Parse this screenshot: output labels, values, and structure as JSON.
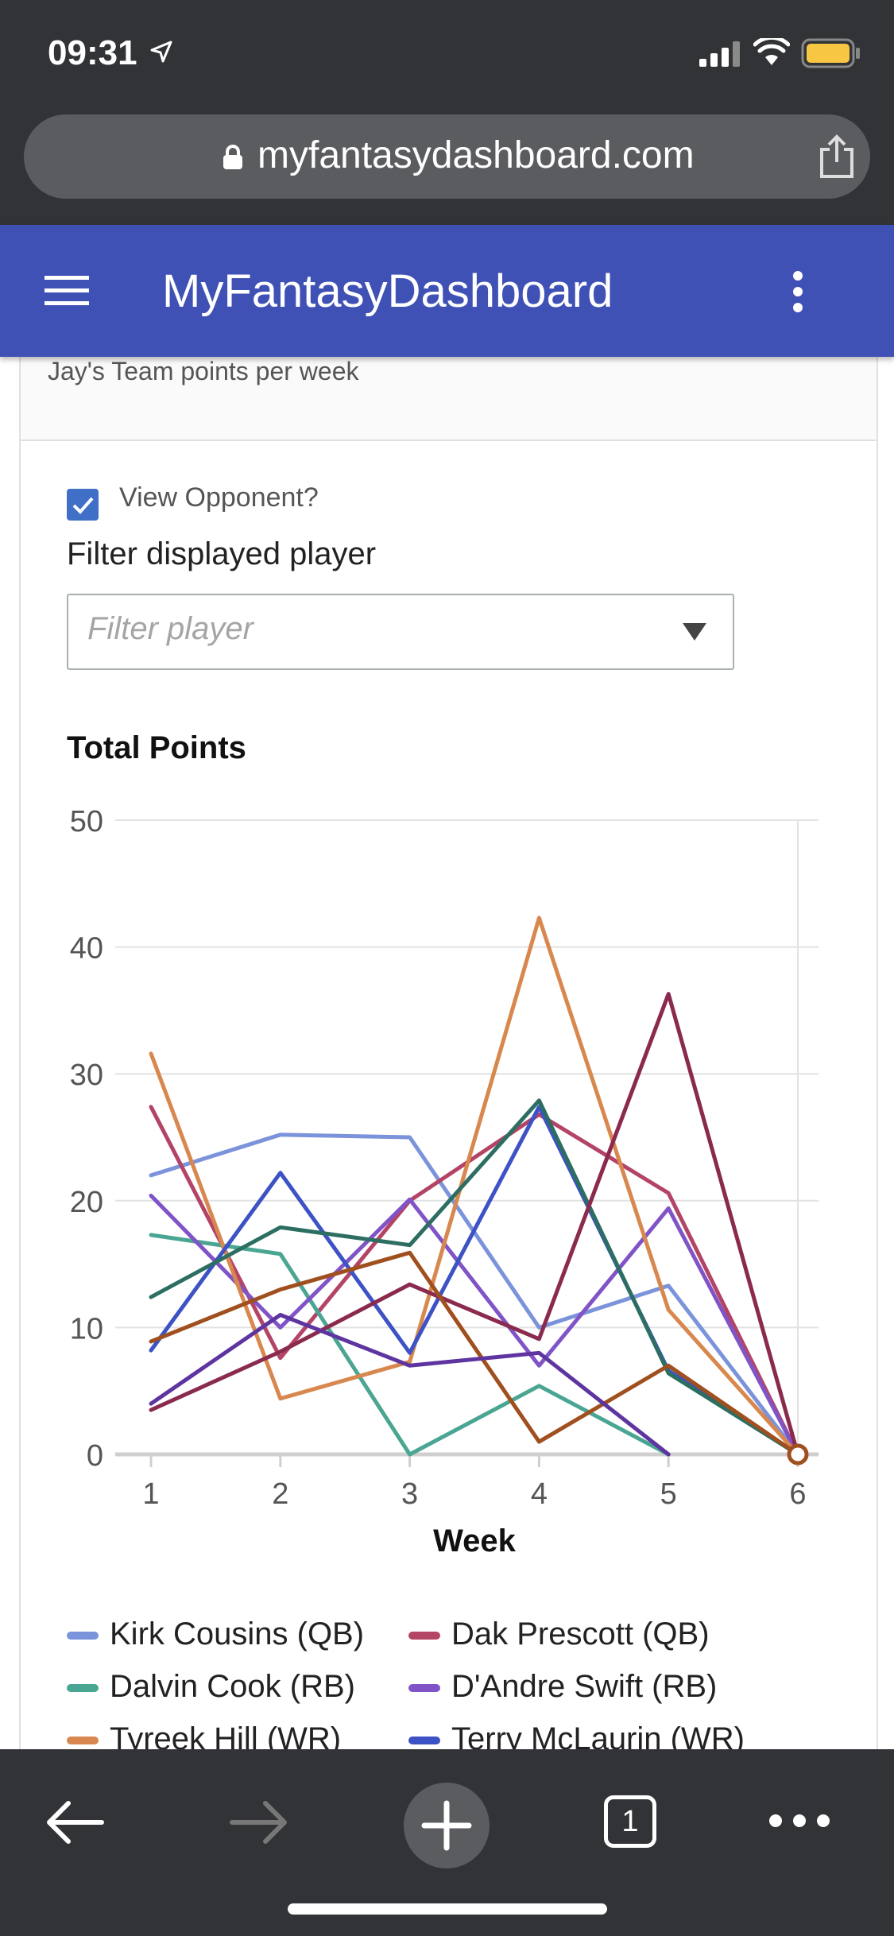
{
  "status": {
    "time": "09:31"
  },
  "browser": {
    "url": "myfantasydashboard.com",
    "tab_count": "1"
  },
  "appbar": {
    "title": "MyFantasyDashboard"
  },
  "card": {
    "subtitle": "Jay's Team points per week",
    "view_opponent_label": "View Opponent?",
    "view_opponent_checked": true,
    "filter_label": "Filter displayed player",
    "filter_placeholder": "Filter player"
  },
  "colors": {
    "appbar": "#3f51b5",
    "chrome": "#323336"
  },
  "chart_data": {
    "type": "line",
    "title": "Total Points",
    "xlabel": "Week",
    "ylabel": "",
    "x": [
      1,
      2,
      3,
      4,
      5,
      6
    ],
    "xlim": [
      1,
      6
    ],
    "ylim": [
      0,
      50
    ],
    "yticks": [
      0,
      10,
      20,
      30,
      40,
      50
    ],
    "grid": true,
    "legend_position": "bottom",
    "series": [
      {
        "name": "Kirk Cousins (QB)",
        "color": "#7b93db",
        "values": [
          22,
          25.2,
          25,
          10,
          13.3,
          0
        ],
        "in_legend": true
      },
      {
        "name": "Dak Prescott (QB)",
        "color": "#b34466",
        "values": [
          27.4,
          7.6,
          20,
          26.8,
          20.6,
          0
        ],
        "in_legend": true
      },
      {
        "name": "Dalvin Cook (RB)",
        "color": "#4aa592",
        "values": [
          17.3,
          15.8,
          0,
          5.4,
          0,
          null
        ],
        "in_legend": true
      },
      {
        "name": "D'Andre Swift (RB)",
        "color": "#8054c6",
        "values": [
          20.4,
          10,
          20.1,
          7,
          19.4,
          0
        ],
        "in_legend": true
      },
      {
        "name": "Tyreek Hill (WR)",
        "color": "#d8884e",
        "values": [
          31.6,
          4.4,
          7.3,
          42.3,
          11.4,
          0
        ],
        "in_legend": true
      },
      {
        "name": "Terry McLaurin (WR)",
        "color": "#3d52c4",
        "values": [
          8.2,
          22.2,
          8,
          27.4,
          6.6,
          0
        ],
        "in_legend": true
      },
      {
        "name": "",
        "color": "#2d6e62",
        "values": [
          12.4,
          17.9,
          16.5,
          27.9,
          6.4,
          0
        ],
        "in_legend": false
      },
      {
        "name": "",
        "color": "#8a2a4f",
        "values": [
          3.5,
          8.1,
          13.4,
          9.1,
          36.3,
          0
        ],
        "in_legend": false
      },
      {
        "name": "",
        "color": "#a04f1e",
        "values": [
          8.9,
          13,
          15.9,
          1,
          7,
          0
        ],
        "in_legend": false
      },
      {
        "name": "",
        "color": "#5e35a0",
        "values": [
          4,
          11,
          7,
          8,
          0,
          null
        ],
        "in_legend": false
      }
    ]
  }
}
